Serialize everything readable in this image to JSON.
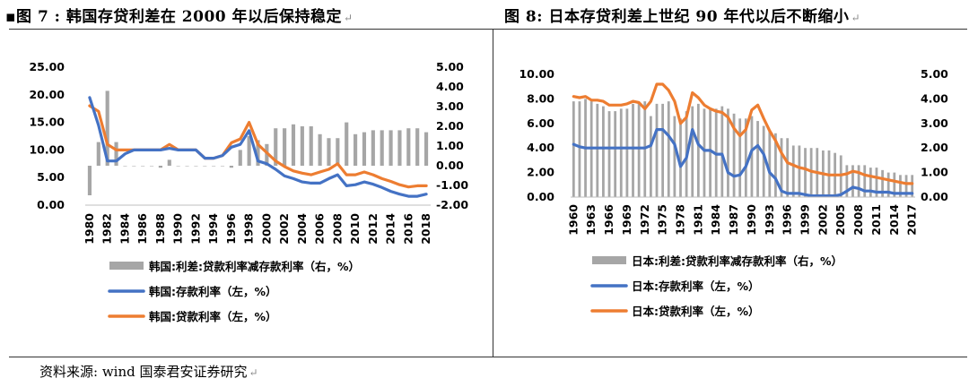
{
  "header": {
    "left_title": "▪图 7 : 韩国存贷利差在 2000 年以后保持稳定",
    "right_title": "图 8: 日本存贷利差上世纪 90 年代以后不断缩小"
  },
  "footer": {
    "source": "资料来源: wind 国泰君安证券研究"
  },
  "colors": {
    "spread": "#a6a6a6",
    "deposit": "#4472c4",
    "lending": "#ed7d31"
  },
  "chart_data": [
    {
      "type": "bar+line",
      "title": "图 7 : 韩国存贷利差在 2000 年以后保持稳定",
      "x": [
        1980,
        1981,
        1982,
        1983,
        1984,
        1985,
        1986,
        1987,
        1988,
        1989,
        1990,
        1991,
        1992,
        1993,
        1994,
        1995,
        1996,
        1997,
        1998,
        1999,
        2000,
        2001,
        2002,
        2003,
        2004,
        2005,
        2006,
        2007,
        2008,
        2009,
        2010,
        2011,
        2012,
        2013,
        2014,
        2015,
        2016,
        2017,
        2018
      ],
      "x_tick_labels": [
        "1980",
        "1982",
        "1984",
        "1986",
        "1988",
        "1990",
        "1992",
        "1994",
        "1996",
        "1998",
        "2000",
        "2002",
        "2004",
        "2006",
        "2008",
        "2010",
        "2012",
        "2014",
        "2016",
        "2018"
      ],
      "left_axis": {
        "ticks": [
          "0.00",
          "5.00",
          "10.00",
          "15.00",
          "20.00",
          "25.00"
        ],
        "range": [
          0,
          25
        ]
      },
      "right_axis": {
        "ticks": [
          "-2.00",
          "-1.00",
          "0.00",
          "1.00",
          "2.00",
          "3.00",
          "4.00",
          "5.00"
        ],
        "range": [
          -2,
          5
        ]
      },
      "series": [
        {
          "name": "韩国:利差:贷款利率减存款利率（右，%）",
          "axis": "right",
          "kind": "bar",
          "values": [
            -1.5,
            1.2,
            3.8,
            1.2,
            0,
            0,
            0,
            0,
            -0.1,
            0.3,
            0,
            0,
            0,
            0,
            0,
            0,
            -0.1,
            0.8,
            1.5,
            1.3,
            1.1,
            1.9,
            1.9,
            2.1,
            2.0,
            2.0,
            1.6,
            1.4,
            1.4,
            2.2,
            1.6,
            1.7,
            1.8,
            1.8,
            1.8,
            1.8,
            1.9,
            1.9,
            1.7
          ]
        },
        {
          "name": "韩国:存款利率（左，%）",
          "axis": "left",
          "kind": "line",
          "values": [
            19.5,
            14.5,
            8.0,
            8.0,
            9.3,
            10.0,
            10.0,
            10.0,
            10.0,
            10.3,
            10.0,
            10.0,
            10.0,
            8.5,
            8.5,
            9.0,
            10.5,
            11.0,
            13.5,
            8.0,
            7.5,
            6.5,
            5.3,
            4.8,
            4.2,
            4.0,
            4.0,
            4.8,
            5.5,
            3.5,
            3.7,
            4.2,
            3.8,
            3.2,
            2.5,
            2.0,
            1.6,
            1.6,
            2.0
          ]
        },
        {
          "name": "韩国:贷款利率（左，%）",
          "axis": "left",
          "kind": "line",
          "values": [
            18.0,
            17.0,
            11.0,
            10.0,
            10.0,
            10.0,
            10.0,
            10.0,
            10.0,
            11.0,
            10.0,
            10.0,
            10.0,
            8.5,
            8.5,
            9.0,
            11.3,
            12.0,
            15.0,
            11.0,
            9.5,
            8.0,
            7.0,
            6.2,
            5.8,
            5.5,
            6.0,
            6.5,
            7.5,
            5.5,
            5.5,
            6.0,
            5.5,
            4.8,
            4.3,
            3.7,
            3.3,
            3.5,
            3.5
          ]
        }
      ],
      "legend": [
        "韩国:利差:贷款利率减存款利率（右，%）",
        "韩国:存款利率（左，%）",
        "韩国:贷款利率（左，%）"
      ]
    },
    {
      "type": "bar+line",
      "title": "图 8: 日本存贷利差上世纪 90 年代以后不断缩小",
      "x": [
        1960,
        1961,
        1962,
        1963,
        1964,
        1965,
        1966,
        1967,
        1968,
        1969,
        1970,
        1971,
        1972,
        1973,
        1974,
        1975,
        1976,
        1977,
        1978,
        1979,
        1980,
        1981,
        1982,
        1983,
        1984,
        1985,
        1986,
        1987,
        1988,
        1989,
        1990,
        1991,
        1992,
        1993,
        1994,
        1995,
        1996,
        1997,
        1998,
        1999,
        2000,
        2001,
        2002,
        2003,
        2004,
        2005,
        2006,
        2007,
        2008,
        2009,
        2010,
        2011,
        2012,
        2013,
        2014,
        2015,
        2016,
        2017
      ],
      "x_tick_labels": [
        "1960",
        "1963",
        "1966",
        "1969",
        "1972",
        "1975",
        "1978",
        "1981",
        "1984",
        "1987",
        "1990",
        "1993",
        "1996",
        "1999",
        "2002",
        "2005",
        "2008",
        "2011",
        "2014",
        "2017"
      ],
      "left_axis": {
        "ticks": [
          "0.00",
          "2.00",
          "4.00",
          "6.00",
          "8.00",
          "10.00"
        ],
        "range": [
          0,
          10
        ]
      },
      "right_axis": {
        "ticks": [
          "0.00",
          "1.00",
          "2.00",
          "3.00",
          "4.00",
          "5.00"
        ],
        "range": [
          0,
          5
        ]
      },
      "series": [
        {
          "name": "日本:利差:贷款利率减存款利率（右，%）",
          "axis": "right",
          "kind": "bar",
          "values": [
            3.9,
            3.9,
            4.0,
            3.9,
            3.8,
            3.7,
            3.5,
            3.5,
            3.6,
            3.6,
            3.8,
            3.8,
            3.9,
            3.3,
            3.8,
            3.8,
            3.9,
            3.3,
            3.2,
            3.5,
            3.7,
            3.8,
            3.6,
            3.6,
            3.6,
            3.7,
            3.6,
            3.4,
            3.2,
            3.2,
            3.3,
            3.1,
            2.9,
            2.7,
            2.6,
            2.4,
            2.4,
            2.1,
            2.1,
            2.0,
            2.0,
            2.0,
            1.9,
            1.9,
            1.8,
            1.7,
            1.3,
            1.3,
            1.3,
            1.3,
            1.2,
            1.2,
            1.1,
            1.0,
            1.0,
            0.9,
            0.9,
            0.9
          ]
        },
        {
          "name": "日本:存款利率（左，%）",
          "axis": "left",
          "kind": "line",
          "values": [
            4.3,
            4.1,
            4.0,
            4.0,
            4.0,
            4.0,
            4.0,
            4.0,
            4.0,
            4.0,
            4.0,
            4.0,
            4.0,
            4.2,
            5.5,
            5.5,
            5.0,
            4.3,
            2.5,
            3.2,
            5.5,
            4.3,
            3.8,
            3.8,
            3.5,
            3.5,
            2.0,
            1.7,
            1.8,
            2.5,
            3.8,
            4.2,
            3.5,
            2.0,
            1.5,
            0.5,
            0.3,
            0.3,
            0.3,
            0.2,
            0.1,
            0.1,
            0.1,
            0.1,
            0.1,
            0.2,
            0.5,
            0.8,
            0.7,
            0.5,
            0.5,
            0.4,
            0.4,
            0.4,
            0.3,
            0.3,
            0.3,
            0.3
          ]
        },
        {
          "name": "日本:贷款利率（左，%）",
          "axis": "left",
          "kind": "line",
          "values": [
            8.2,
            8.1,
            8.2,
            7.9,
            7.9,
            7.8,
            7.5,
            7.5,
            7.5,
            7.6,
            7.8,
            7.7,
            7.2,
            7.8,
            9.2,
            9.2,
            8.7,
            7.8,
            6.0,
            6.5,
            8.5,
            8.1,
            7.5,
            7.2,
            7.0,
            6.9,
            6.5,
            5.6,
            5.0,
            5.5,
            7.1,
            7.5,
            6.4,
            5.4,
            4.6,
            3.6,
            2.8,
            2.6,
            2.4,
            2.3,
            2.1,
            2.0,
            1.9,
            1.8,
            1.8,
            1.8,
            1.9,
            2.1,
            2.0,
            1.8,
            1.7,
            1.6,
            1.5,
            1.4,
            1.3,
            1.2,
            1.1,
            1.1
          ]
        }
      ],
      "legend": [
        "日本:利差:贷款利率减存款利率（右，%）",
        "日本:存款利率（左，%）",
        "日本:贷款利率（左，%）"
      ]
    }
  ]
}
